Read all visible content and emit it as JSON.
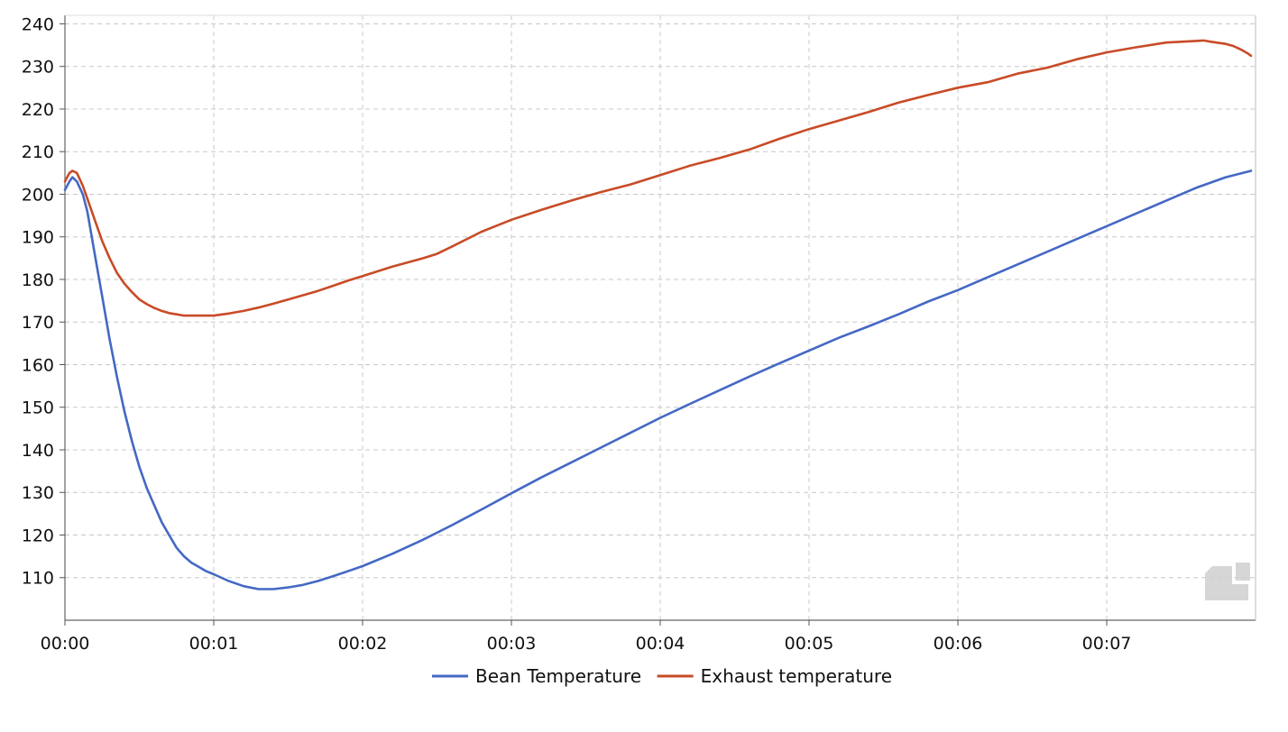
{
  "chart_data": {
    "type": "line",
    "title": "",
    "xlabel": "",
    "ylabel": "",
    "x_unit": "minutes",
    "xlim": [
      0,
      8
    ],
    "ylim": [
      100,
      242
    ],
    "x_ticks": [
      0,
      1,
      2,
      3,
      4,
      5,
      6,
      7
    ],
    "x_tick_labels": [
      "00:00",
      "00:01",
      "00:02",
      "00:03",
      "00:04",
      "00:05",
      "00:06",
      "00:07"
    ],
    "y_ticks": [
      110,
      120,
      130,
      140,
      150,
      160,
      170,
      180,
      190,
      200,
      210,
      220,
      230,
      240
    ],
    "y_tick_labels": [
      "110",
      "120",
      "130",
      "140",
      "150",
      "160",
      "170",
      "180",
      "190",
      "200",
      "210",
      "220",
      "230",
      "240"
    ],
    "grid": true,
    "grid_style": "dashed",
    "legend_position": "bottom-center",
    "watermark": "logo",
    "series": [
      {
        "name": "Bean Temperature",
        "color": "#4468c4",
        "x": [
          0,
          0.03,
          0.05,
          0.08,
          0.12,
          0.15,
          0.2,
          0.25,
          0.3,
          0.35,
          0.4,
          0.45,
          0.5,
          0.55,
          0.6,
          0.65,
          0.7,
          0.75,
          0.8,
          0.85,
          0.9,
          0.95,
          1.0,
          1.1,
          1.2,
          1.3,
          1.4,
          1.5,
          1.6,
          1.7,
          1.8,
          1.9,
          2.0,
          2.2,
          2.4,
          2.6,
          2.8,
          3.0,
          3.2,
          3.4,
          3.6,
          3.8,
          4.0,
          4.2,
          4.4,
          4.6,
          4.8,
          5.0,
          5.2,
          5.4,
          5.6,
          5.8,
          6.0,
          6.2,
          6.4,
          6.6,
          6.8,
          7.0,
          7.2,
          7.4,
          7.6,
          7.8,
          7.97
        ],
        "values": [
          201,
          203,
          204,
          203,
          200,
          196,
          186,
          176,
          166,
          157,
          149,
          142,
          136,
          131,
          127,
          123,
          120,
          117,
          115,
          113.5,
          112.5,
          111.5,
          110.8,
          109.2,
          108,
          107.3,
          107.3,
          107.7,
          108.3,
          109.2,
          110.3,
          111.5,
          112.7,
          115.6,
          118.8,
          122.3,
          126,
          129.8,
          133.5,
          137,
          140.5,
          144,
          147.5,
          150.8,
          154,
          157.2,
          160.3,
          163.3,
          166.3,
          169,
          171.8,
          174.8,
          177.5,
          180.5,
          183.5,
          186.5,
          189.5,
          192.5,
          195.5,
          198.5,
          201.5,
          204,
          205.5
        ]
      },
      {
        "name": "Exhaust temperature",
        "color": "#c84b27",
        "x": [
          0,
          0.03,
          0.05,
          0.08,
          0.12,
          0.15,
          0.2,
          0.25,
          0.3,
          0.35,
          0.4,
          0.45,
          0.5,
          0.55,
          0.6,
          0.65,
          0.7,
          0.75,
          0.8,
          0.85,
          0.9,
          0.95,
          1.0,
          1.1,
          1.2,
          1.3,
          1.4,
          1.5,
          1.6,
          1.7,
          1.8,
          1.9,
          2.0,
          2.2,
          2.4,
          2.5,
          2.6,
          2.8,
          3.0,
          3.2,
          3.4,
          3.6,
          3.8,
          4.0,
          4.2,
          4.4,
          4.6,
          4.8,
          5.0,
          5.2,
          5.4,
          5.6,
          5.8,
          6.0,
          6.2,
          6.4,
          6.6,
          6.8,
          7.0,
          7.2,
          7.4,
          7.6,
          7.65,
          7.7,
          7.8,
          7.85,
          7.9,
          7.95,
          7.97
        ],
        "values": [
          203,
          205,
          205.5,
          205,
          202,
          199,
          194,
          189,
          185,
          181.5,
          179,
          177,
          175.3,
          174.2,
          173.3,
          172.6,
          172.1,
          171.8,
          171.5,
          171.5,
          171.5,
          171.5,
          171.5,
          172,
          172.6,
          173.4,
          174.3,
          175.3,
          176.3,
          177.3,
          178.5,
          179.7,
          180.8,
          183,
          184.9,
          186,
          187.7,
          191.2,
          194,
          196.3,
          198.5,
          200.5,
          202.3,
          204.5,
          206.7,
          208.5,
          210.5,
          213,
          215.3,
          217.3,
          219.3,
          221.5,
          223.3,
          225,
          226.3,
          228.3,
          229.7,
          231.7,
          233.3,
          234.5,
          235.6,
          236,
          236.1,
          235.8,
          235.3,
          234.8,
          234,
          233,
          232.5
        ]
      }
    ]
  }
}
